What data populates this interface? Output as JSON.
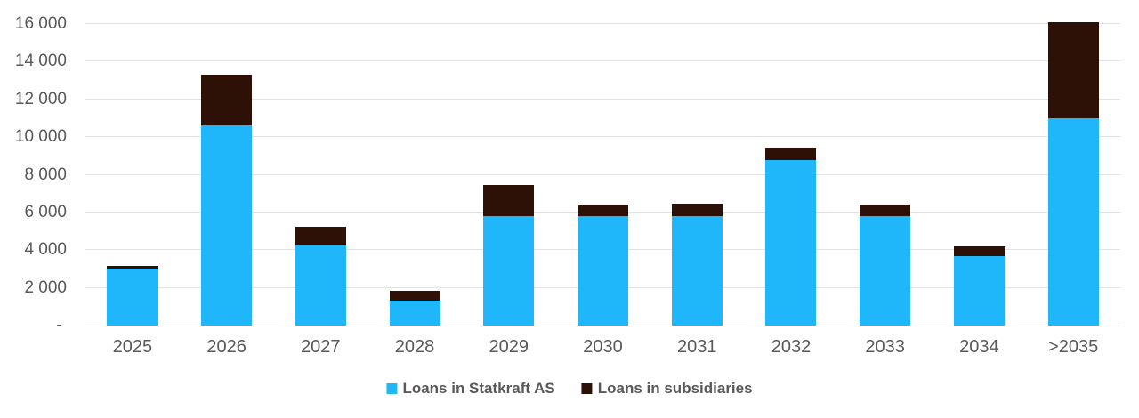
{
  "chart_data": {
    "type": "bar",
    "stacked": true,
    "title": "",
    "xlabel": "",
    "ylabel": "",
    "categories": [
      "2025",
      "2026",
      "2027",
      "2028",
      "2029",
      "2030",
      "2031",
      "2032",
      "2033",
      "2034",
      ">2035"
    ],
    "series": [
      {
        "name": "Loans in Statkraft AS",
        "color": "#20B6FA",
        "values": [
          3000,
          10600,
          4250,
          1300,
          5800,
          5800,
          5800,
          8800,
          5800,
          3700,
          11000
        ]
      },
      {
        "name": "Loans in subsidiaries",
        "color": "#2D1106",
        "values": [
          150,
          2700,
          1000,
          550,
          1650,
          600,
          650,
          650,
          600,
          500,
          5100
        ]
      }
    ],
    "ylim": [
      0,
      16000
    ],
    "y_tick_step": 2000,
    "y_tick_labels": [
      "- ",
      "2 000",
      "4 000",
      "6 000",
      "8 000",
      "10 000",
      "12 000",
      "14 000",
      "16 000"
    ],
    "grid": true,
    "legend_position": "bottom"
  },
  "colors": {
    "background": "#FFFFFF",
    "axis_text": "#595959",
    "gridline": "#E2E2E2",
    "axis_line": "#D9D9D9",
    "series_statkraft": "#20B6FA",
    "series_subsidiaries": "#2D1106"
  }
}
